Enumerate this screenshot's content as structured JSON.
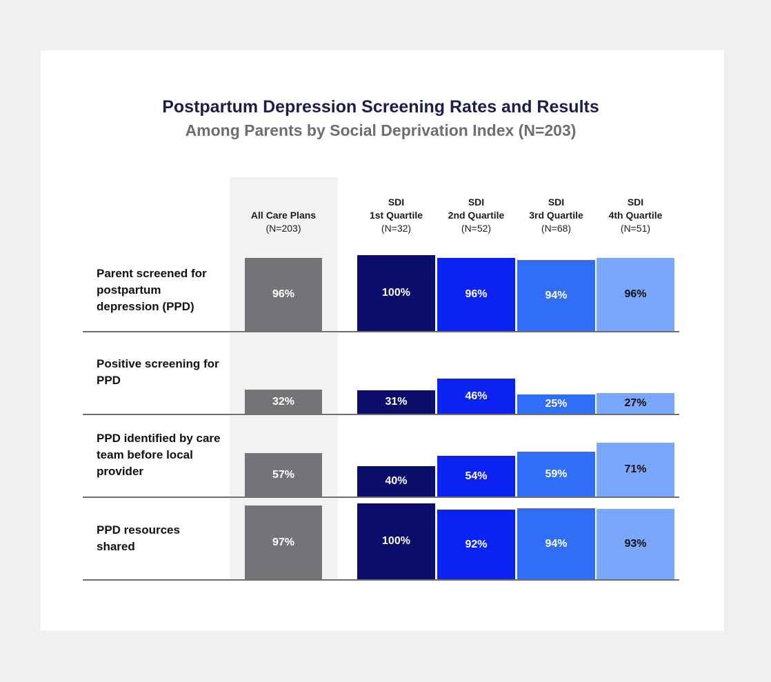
{
  "chart_data": {
    "type": "bar",
    "title": "Postpartum Depression Screening Rates and Results",
    "subtitle": "Among Parents by Social Deprivation Index (N=203)",
    "columns": [
      {
        "key": "all",
        "lines": [
          "All Care Plans"
        ],
        "n": "(N=203)",
        "color": "#747478",
        "label_color": "#ffffff"
      },
      {
        "key": "q1",
        "lines": [
          "SDI",
          "1st Quartile"
        ],
        "n": "(N=32)",
        "color": "#0b0d6b",
        "label_color": "#ffffff"
      },
      {
        "key": "q2",
        "lines": [
          "SDI",
          "2nd Quartile"
        ],
        "n": "(N=52)",
        "color": "#0c22f0",
        "label_color": "#ffffff"
      },
      {
        "key": "q3",
        "lines": [
          "SDI",
          "3rd Quartile"
        ],
        "n": "(N=68)",
        "color": "#2f6ef5",
        "label_color": "#ffffff"
      },
      {
        "key": "q4",
        "lines": [
          "SDI",
          "4th Quartile"
        ],
        "n": "(N=51)",
        "color": "#79a7fb",
        "label_color": "#111111"
      }
    ],
    "rows": [
      {
        "label": "Parent screened for postpartum depression (PPD)",
        "values": [
          96,
          100,
          96,
          94,
          96
        ]
      },
      {
        "label": "Positive screening for PPD",
        "values": [
          32,
          31,
          46,
          25,
          27
        ]
      },
      {
        "label": "PPD identified by care team before local provider",
        "values": [
          57,
          40,
          54,
          59,
          71
        ]
      },
      {
        "label": "PPD resources shared",
        "values": [
          97,
          100,
          92,
          94,
          93
        ]
      }
    ],
    "unit": "%"
  }
}
